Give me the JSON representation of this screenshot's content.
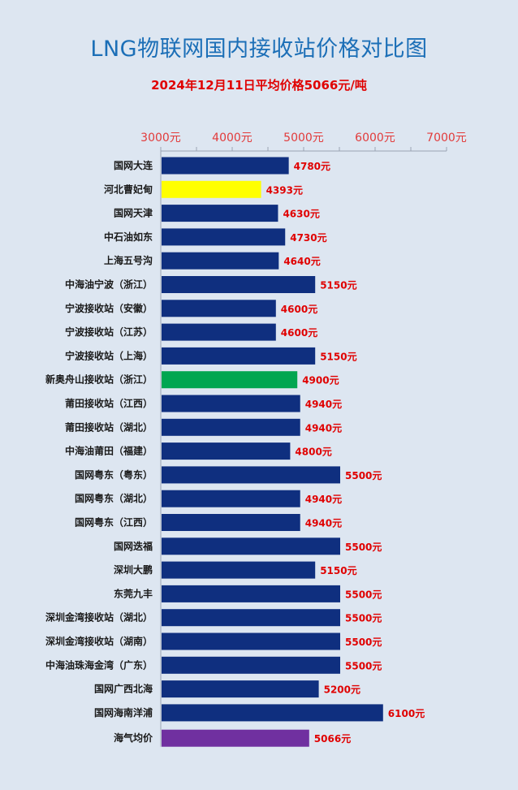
{
  "chart_data": {
    "type": "bar",
    "orientation": "horizontal",
    "title": "LNG物联网国内接收站价格对比图",
    "subtitle": "2024年12月11日平均价格5066元/吨",
    "x_ticks": [
      "3000元",
      "4000元",
      "5000元",
      "6000元",
      "7000元"
    ],
    "xlim": [
      3000,
      7000
    ],
    "grid": false,
    "categories": [
      "国网大连",
      "河北曹妃甸",
      "国网天津",
      "中石油如东",
      "上海五号沟",
      "中海油宁波（浙江）",
      "宁波接收站（安徽）",
      "宁波接收站（江苏）",
      "宁波接收站（上海）",
      "新奥舟山接收站（浙江）",
      "莆田接收站（江西）",
      "莆田接收站（湖北）",
      "中海油莆田（福建）",
      "国网粤东（粤东）",
      "国网粤东（湖北）",
      "国网粤东（江西）",
      "国网迭福",
      "深圳大鹏",
      "东莞九丰",
      "深圳金湾接收站（湖北）",
      "深圳金湾接收站（湖南）",
      "中海油珠海金湾（广东）",
      "国网广西北海",
      "国网海南洋浦",
      "海气均价"
    ],
    "values": [
      4780,
      4393,
      4630,
      4730,
      4640,
      5150,
      4600,
      4600,
      5150,
      4900,
      4940,
      4940,
      4800,
      5500,
      4940,
      4940,
      5500,
      5150,
      5500,
      5500,
      5500,
      5500,
      5200,
      6100,
      5066
    ],
    "value_labels": [
      "4780元",
      "4393元",
      "4630元",
      "4730元",
      "4640元",
      "5150元",
      "4600元",
      "4600元",
      "5150元",
      "4900元",
      "4940元",
      "4940元",
      "4800元",
      "5500元",
      "4940元",
      "4940元",
      "5500元",
      "5150元",
      "5500元",
      "5500元",
      "5500元",
      "5500元",
      "5200元",
      "6100元",
      "5066元"
    ],
    "colors": {
      "default": "#0f2f7f",
      "highlights": {
        "1": "#ffff00",
        "9": "#00a651",
        "24": "#7030a0"
      }
    }
  }
}
